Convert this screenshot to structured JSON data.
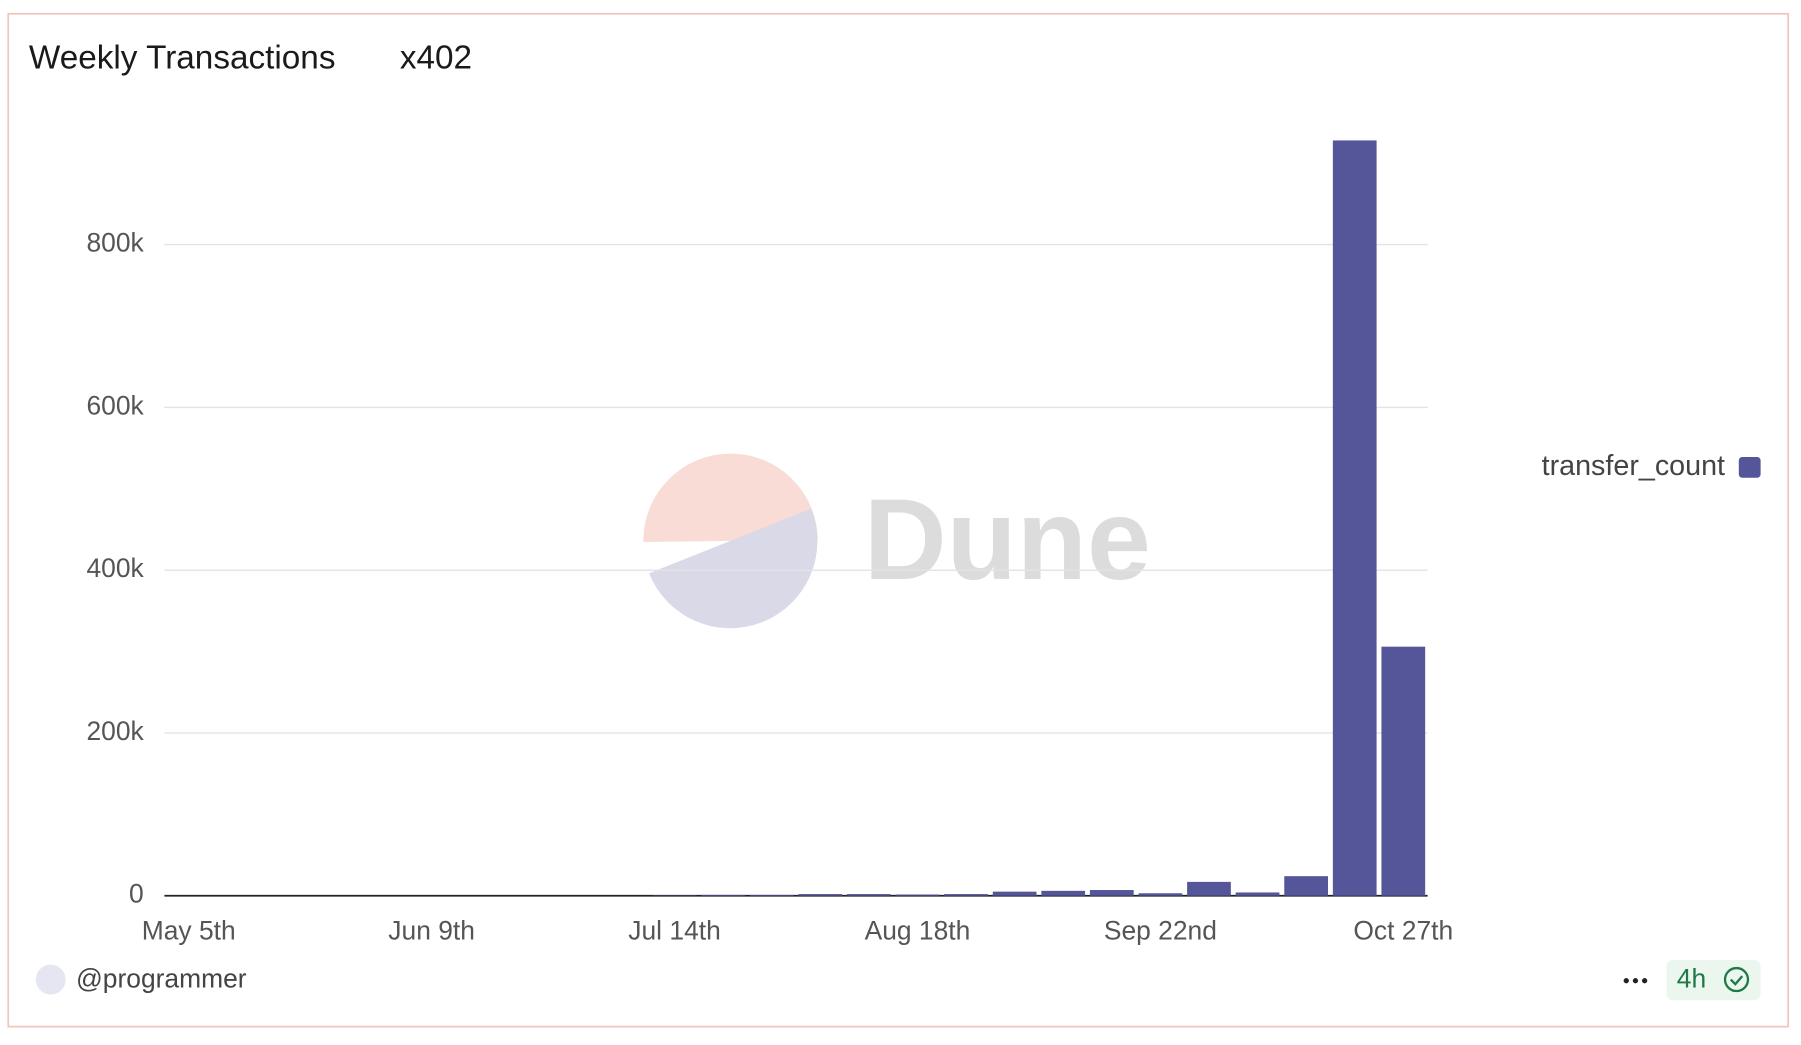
{
  "header": {
    "title": "Weekly Transactions",
    "subtitle": "x402"
  },
  "footer": {
    "author": "@programmer",
    "refresh_age": "4h"
  },
  "watermark": "Dune",
  "chart_data": {
    "type": "bar",
    "categories": [
      "May 5th",
      null,
      null,
      null,
      null,
      "Jun 9th",
      null,
      null,
      null,
      null,
      "Jul 14th",
      null,
      null,
      null,
      null,
      "Aug 18th",
      null,
      null,
      null,
      null,
      "Sep 22nd",
      null,
      null,
      null,
      null,
      "Oct 27th"
    ],
    "series": [
      {
        "name": "transfer_count",
        "color": "#55559a",
        "values": [
          0,
          0,
          0,
          0,
          0,
          0,
          0,
          0,
          0,
          0,
          500,
          1000,
          1000,
          2000,
          2000,
          1500,
          2000,
          5000,
          6000,
          7000,
          3000,
          17000,
          4000,
          24000,
          928000,
          306000
        ]
      }
    ],
    "ylim": [
      0,
      950000
    ],
    "yticks": [
      {
        "value": 0,
        "label": "0"
      },
      {
        "value": 200000,
        "label": "200k"
      },
      {
        "value": 400000,
        "label": "400k"
      },
      {
        "value": 600000,
        "label": "600k"
      },
      {
        "value": 800000,
        "label": "800k"
      }
    ],
    "grid": true,
    "legend": "right"
  }
}
